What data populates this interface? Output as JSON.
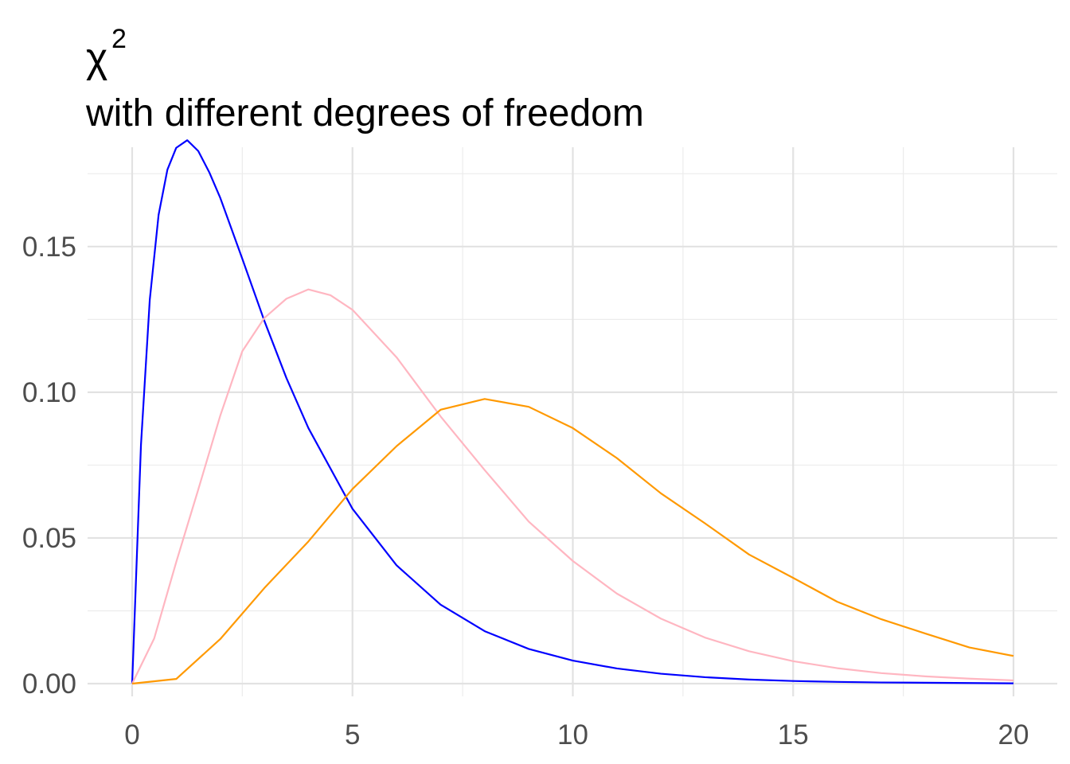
{
  "chart_data": {
    "type": "line",
    "title": "χ",
    "title_superscript": "2",
    "subtitle": "with different degrees of freedom",
    "xlabel": "",
    "ylabel": "",
    "xlim": [
      0,
      20
    ],
    "ylim": [
      0,
      0.18
    ],
    "x_ticks": [
      "0",
      "5",
      "10",
      "15",
      "20"
    ],
    "y_ticks": [
      "0.00",
      "0.05",
      "0.10",
      "0.15"
    ],
    "grid": true,
    "legend": "none",
    "series": [
      {
        "color": "#0000ff",
        "x": [
          0,
          0.2,
          0.4,
          0.6,
          0.8,
          1.0,
          1.25,
          1.5,
          1.75,
          2.0,
          2.5,
          3.0,
          3.5,
          4.0,
          5.0,
          6.0,
          7.0,
          8.0,
          9.0,
          10.0,
          11.0,
          12.0,
          13.0,
          14.0,
          15.0,
          16.0,
          17.0,
          18.0,
          19.0,
          20.0
        ],
        "values": [
          0,
          0.0819,
          0.1318,
          0.1609,
          0.1764,
          0.1839,
          0.1865,
          0.1828,
          0.1755,
          0.1667,
          0.1458,
          0.1245,
          0.1049,
          0.0877,
          0.06,
          0.0406,
          0.0271,
          0.018,
          0.0119,
          0.0079,
          0.0052,
          0.0034,
          0.0022,
          0.0014,
          0.0009,
          0.0006,
          0.0004,
          0.0003,
          0.0002,
          0.0001
        ]
      },
      {
        "color": "#ffb6c1",
        "x": [
          0,
          0.5,
          1.0,
          1.5,
          2.0,
          2.5,
          3.0,
          3.5,
          4.0,
          4.5,
          5.0,
          6.0,
          7.0,
          8.0,
          9.0,
          10.0,
          11.0,
          12.0,
          13.0,
          14.0,
          15.0,
          16.0,
          17.0,
          18.0,
          19.0,
          20.0
        ],
        "values": [
          0,
          0.0155,
          0.0417,
          0.0666,
          0.092,
          0.1141,
          0.1255,
          0.1321,
          0.1353,
          0.1333,
          0.1283,
          0.112,
          0.0917,
          0.0733,
          0.0556,
          0.0421,
          0.0309,
          0.0223,
          0.0158,
          0.0111,
          0.0077,
          0.0053,
          0.0036,
          0.0025,
          0.0017,
          0.0011
        ]
      },
      {
        "color": "#ff9900",
        "x": [
          0,
          1,
          2,
          3,
          4,
          5,
          6,
          7,
          8,
          9,
          10,
          11,
          12,
          13,
          14,
          15,
          16,
          17,
          18,
          19,
          20
        ],
        "values": [
          0,
          0.0016,
          0.0153,
          0.0328,
          0.0488,
          0.0668,
          0.0815,
          0.094,
          0.0977,
          0.095,
          0.0877,
          0.0774,
          0.0653,
          0.055,
          0.0443,
          0.0363,
          0.0281,
          0.0221,
          0.0172,
          0.0124,
          0.0095
        ]
      }
    ]
  }
}
